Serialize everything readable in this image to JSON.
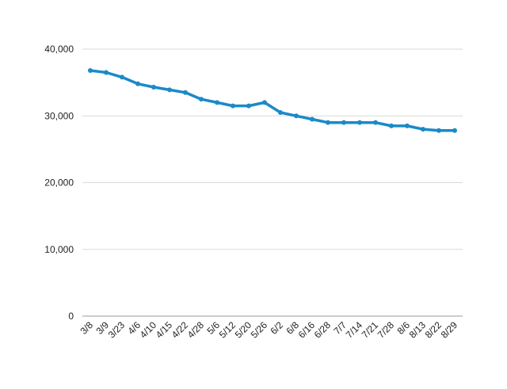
{
  "chart_data": {
    "type": "line",
    "title": "",
    "xlabel": "",
    "ylabel": "",
    "ylim": [
      0,
      40000
    ],
    "yticks": [
      0,
      10000,
      20000,
      30000,
      40000
    ],
    "ytick_labels": [
      "0",
      "10,000",
      "20,000",
      "30,000",
      "40,000"
    ],
    "grid": true,
    "legend": "none",
    "categories": [
      "3/8",
      "3/9",
      "3/23",
      "4/6",
      "4/10",
      "4/15",
      "4/22",
      "4/28",
      "5/6",
      "5/12",
      "5/20",
      "5/26",
      "6/2",
      "6/8",
      "6/16",
      "6/28",
      "7/7",
      "7/14",
      "7/21",
      "7/28",
      "8/6",
      "8/13",
      "8/22",
      "8/29"
    ],
    "series": [
      {
        "color": "#1a8ac8",
        "values": [
          36800,
          36500,
          35800,
          34800,
          34300,
          33900,
          33500,
          32500,
          32000,
          31500,
          31500,
          32000,
          30500,
          30000,
          29500,
          29000,
          29000,
          29000,
          29000,
          28500,
          28500,
          28000,
          27800,
          27800
        ]
      }
    ]
  }
}
